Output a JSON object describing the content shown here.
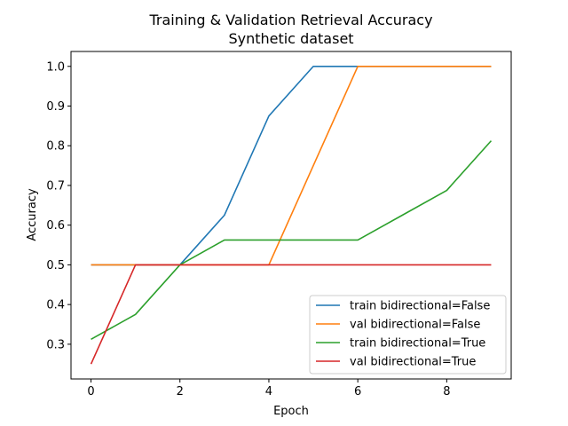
{
  "chart_data": {
    "type": "line",
    "title": "Training & Validation Retrieval Accuracy",
    "subtitle": "Synthetic dataset",
    "xlabel": "Epoch",
    "ylabel": "Accuracy",
    "xlim": [
      -0.45,
      9.45
    ],
    "ylim": [
      0.2125,
      1.0375
    ],
    "xticks": [
      0,
      2,
      4,
      6,
      8
    ],
    "yticks": [
      0.3,
      0.4,
      0.5,
      0.6,
      0.7,
      0.8,
      0.9,
      1.0
    ],
    "grid": false,
    "legend_position": "lower-right",
    "x": [
      0,
      1,
      2,
      3,
      4,
      5,
      6,
      7,
      8,
      9
    ],
    "series": [
      {
        "name": "train bidirectional=False",
        "color": "#1f77b4",
        "values": [
          0.5,
          0.5,
          0.5,
          0.625,
          0.875,
          1.0,
          1.0,
          1.0,
          1.0,
          1.0
        ]
      },
      {
        "name": "val bidirectional=False",
        "color": "#ff7f0e",
        "values": [
          0.5,
          0.5,
          0.5,
          0.5,
          0.5,
          0.75,
          1.0,
          1.0,
          1.0,
          1.0
        ]
      },
      {
        "name": "train bidirectional=True",
        "color": "#2ca02c",
        "values": [
          0.3125,
          0.375,
          0.5,
          0.5625,
          0.5625,
          0.5625,
          0.5625,
          0.625,
          0.6875,
          0.8125
        ]
      },
      {
        "name": "val bidirectional=True",
        "color": "#d62728",
        "values": [
          0.25,
          0.5,
          0.5,
          0.5,
          0.5,
          0.5,
          0.5,
          0.5,
          0.5,
          0.5
        ]
      }
    ]
  }
}
